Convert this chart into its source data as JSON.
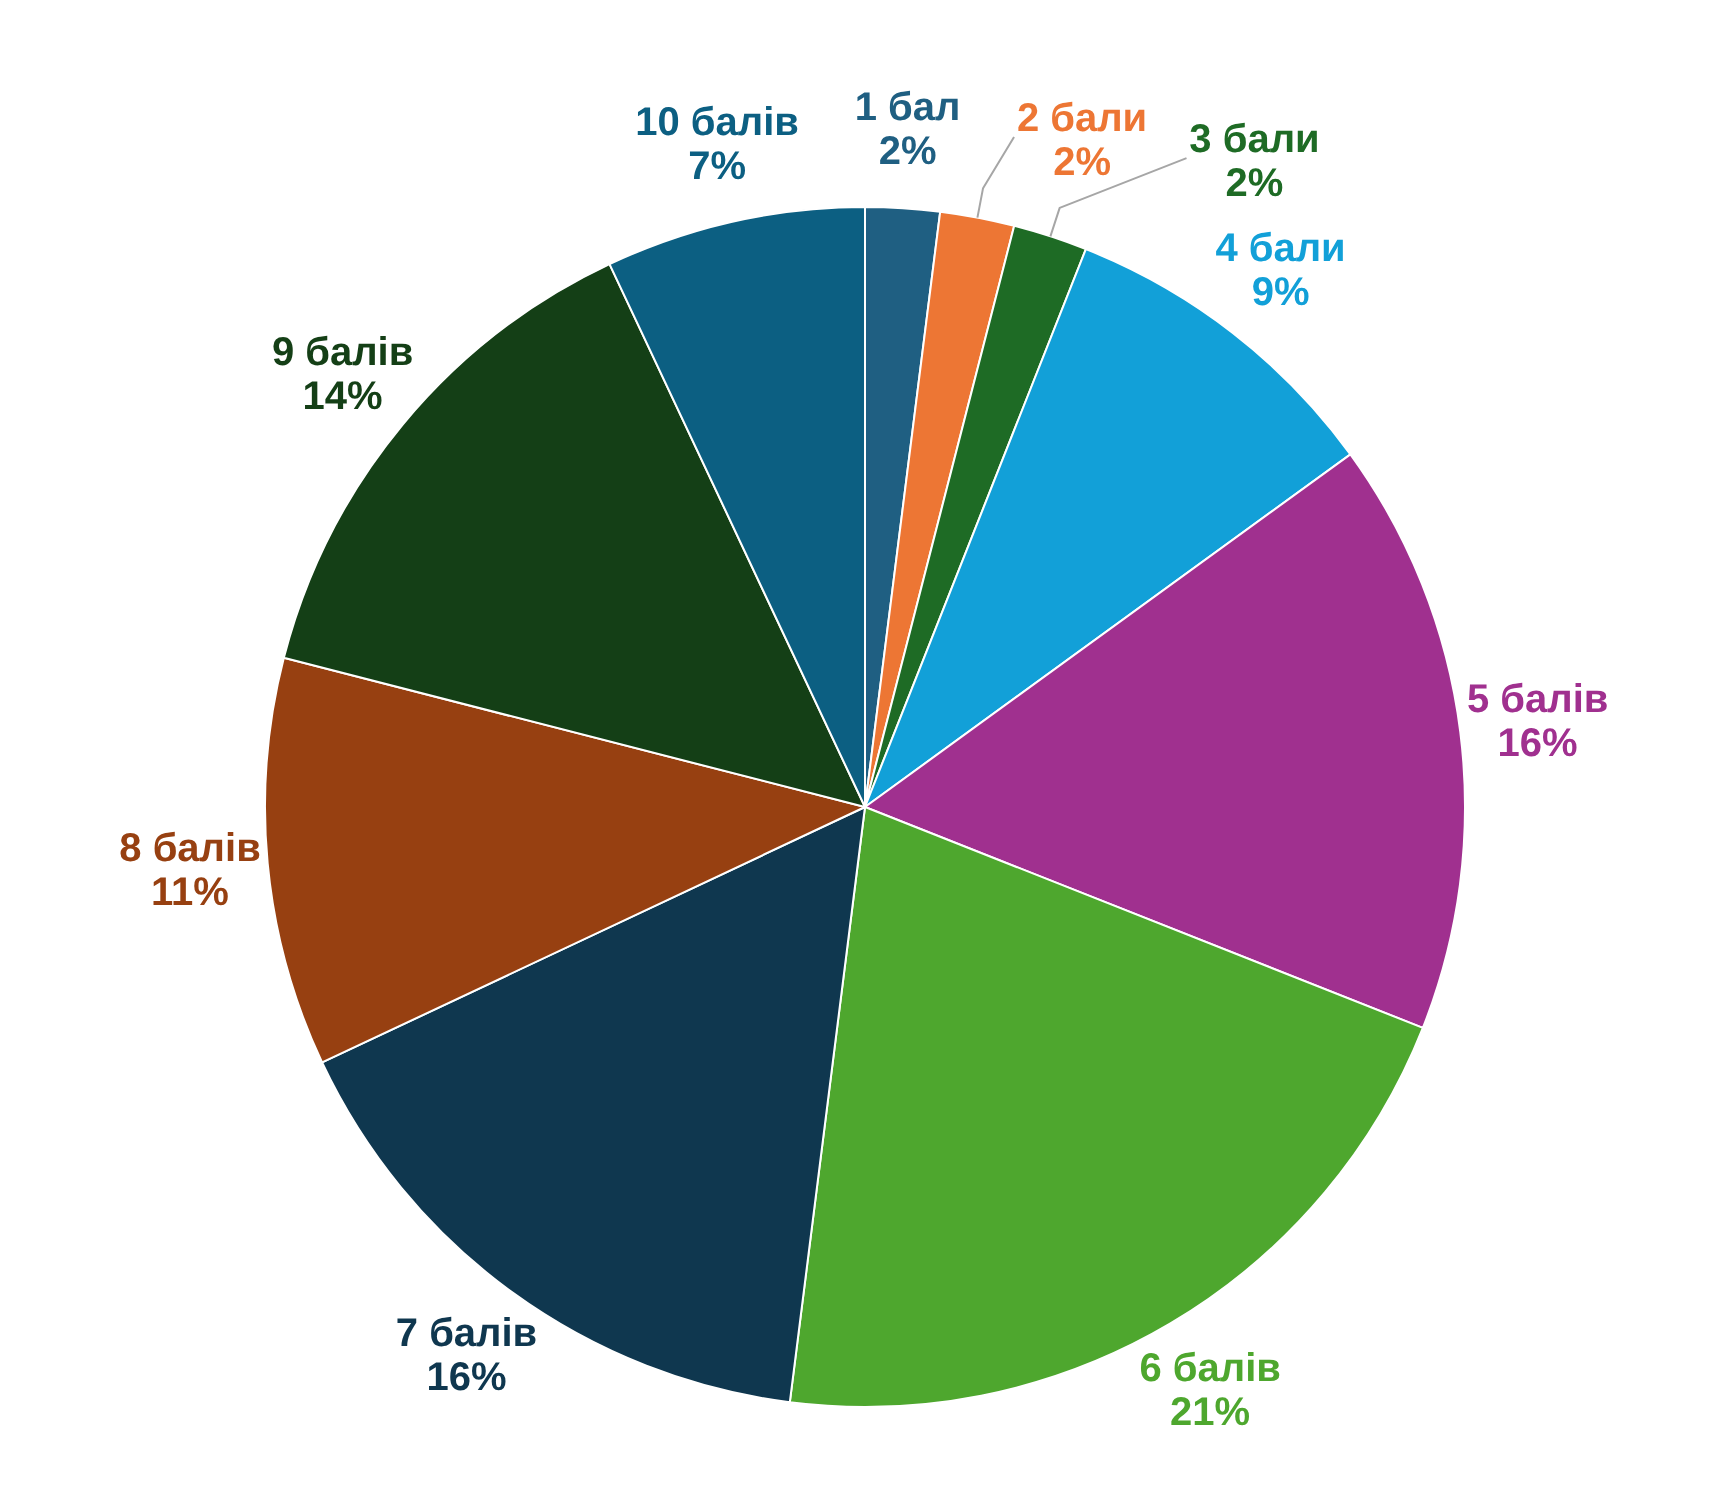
{
  "chart_data": {
    "type": "pie",
    "categories": [
      "1 бал",
      "2 бали",
      "3 бали",
      "4 бали",
      "5 балів",
      "6 балів",
      "7 балів",
      "8 балів",
      "9 балів",
      "10 балів"
    ],
    "values": [
      2,
      2,
      2,
      9,
      16,
      21,
      16,
      11,
      14,
      7
    ],
    "value_labels": [
      "2%",
      "2%",
      "2%",
      "9%",
      "16%",
      "21%",
      "16%",
      "11%",
      "14%",
      "7%"
    ],
    "colors": [
      "#1f5f82",
      "#ed7634",
      "#1e6b25",
      "#12a0d8",
      "#a0308f",
      "#4ea72e",
      "#0f374f",
      "#974011",
      "#143f16",
      "#0c5f82"
    ],
    "legend": false
  }
}
